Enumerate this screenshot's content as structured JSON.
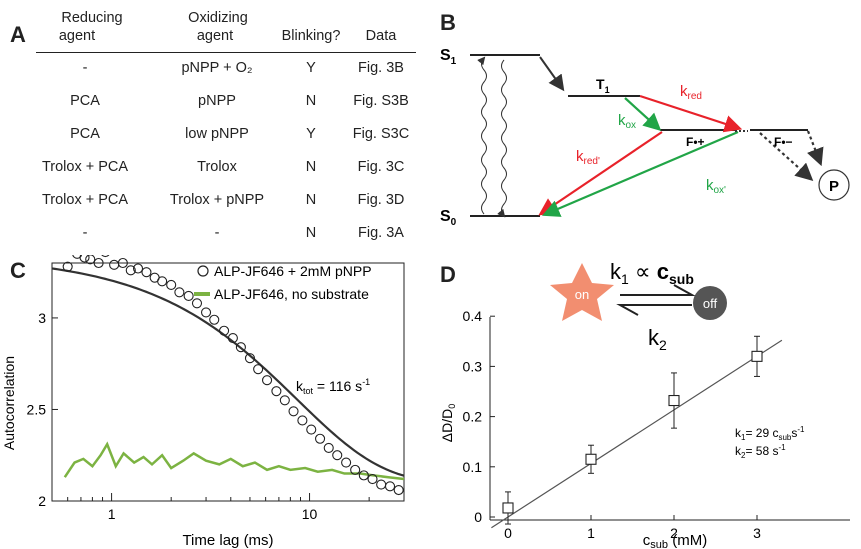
{
  "panel_labels": {
    "a": "A",
    "b": "B",
    "c": "C",
    "d": "D"
  },
  "table": {
    "headers": [
      [
        "Reducing",
        "agent"
      ],
      [
        "Oxidizing",
        "agent"
      ],
      [
        "Blinking?"
      ],
      [
        "Data"
      ]
    ],
    "rows": [
      [
        "-",
        "pNPP + O₂",
        "Y",
        "Fig. 3B"
      ],
      [
        "PCA",
        "pNPP",
        "N",
        "Fig. S3B"
      ],
      [
        "PCA",
        "low pNPP",
        "Y",
        "Fig. S3C"
      ],
      [
        "Trolox + PCA",
        "Trolox",
        "N",
        "Fig. 3C"
      ],
      [
        "Trolox + PCA",
        "Trolox + pNPP",
        "N",
        "Fig. 3D"
      ],
      [
        "-",
        "-",
        "N",
        "Fig. 3A"
      ]
    ]
  },
  "diagram": {
    "s1": "S",
    "s1_sub": "1",
    "s0": "S",
    "s0_sub": "0",
    "t1": "T",
    "t1_sub": "1",
    "radical_cation": "F•+",
    "radical_anion": "F•−",
    "product": "P",
    "k_red": "k",
    "k_red_sub": "red",
    "k_ox": "k",
    "k_ox_sub": "ox",
    "k_red2": "k",
    "k_red2_sub": "red'",
    "k_ox2": "k",
    "k_ox2_sub": "ox'",
    "red_color": "#e8222a",
    "green_color": "#21a547"
  },
  "chart_c": {
    "legend": [
      "ALP-JF646 + 2mM pNPP",
      "ALP-JF646, no substrate"
    ],
    "xlabel": "Time lag (ms)",
    "ylabel": "Autocorrelation",
    "annotation": "k",
    "annotation_sub": "tot",
    "annotation_value": " = 116 s",
    "annotation_exp": "-1",
    "xticks": [
      "1",
      "10"
    ],
    "yticks": [
      "2",
      "2.5",
      "3"
    ],
    "line_color": "#7cb342"
  },
  "chart_d": {
    "xlabel": "c",
    "xlabel_sub": "sub",
    "xlabel_unit": " (mM)",
    "ylabel": "ΔD/D",
    "ylabel_sub": "0",
    "xticks": [
      "0",
      "1",
      "2",
      "3"
    ],
    "yticks": [
      "0",
      "0.1",
      "0.2",
      "0.3",
      "0.4"
    ],
    "scheme_on": "on",
    "scheme_off": "off",
    "scheme_k1": "k",
    "scheme_k1_sub": "1",
    "scheme_prop": " ∝ ",
    "scheme_c": "c",
    "scheme_c_sub": "sub",
    "scheme_k2": "k",
    "scheme_k2_sub": "2",
    "ann1": "k",
    "ann1_sub": "1",
    "ann1_value": "= 29 c",
    "ann1_sub2": "sub",
    "ann1_unit": "s",
    "ann1_exp": "-1",
    "ann2": "k",
    "ann2_sub": "2",
    "ann2_value": "= 58 s",
    "ann2_exp": "-1",
    "star_color": "#f28e70",
    "off_color": "#555555"
  },
  "chart_data": [
    {
      "type": "scatter",
      "panel": "C",
      "xlabel": "Time lag (ms)",
      "ylabel": "Autocorrelation",
      "xscale": "log",
      "xlim": [
        0.5,
        30
      ],
      "ylim": [
        2,
        3.3
      ],
      "series": [
        {
          "name": "ALP-JF646 + 2mM pNPP",
          "x": [
            0.6,
            0.67,
            0.73,
            0.78,
            0.86,
            0.93,
            1.03,
            1.14,
            1.25,
            1.36,
            1.5,
            1.65,
            1.8,
            2.0,
            2.2,
            2.45,
            2.7,
            3.0,
            3.3,
            3.7,
            4.1,
            4.5,
            5.0,
            5.5,
            6.1,
            6.8,
            7.5,
            8.3,
            9.2,
            10.2,
            11.3,
            12.5,
            13.8,
            15.3,
            17.0,
            18.8,
            20.8,
            23.0,
            25.5,
            28.2
          ],
          "y": [
            3.28,
            3.35,
            3.33,
            3.32,
            3.3,
            3.36,
            3.29,
            3.3,
            3.26,
            3.27,
            3.25,
            3.22,
            3.2,
            3.18,
            3.14,
            3.12,
            3.08,
            3.03,
            2.99,
            2.93,
            2.89,
            2.84,
            2.78,
            2.72,
            2.66,
            2.6,
            2.55,
            2.49,
            2.44,
            2.39,
            2.34,
            2.29,
            2.25,
            2.21,
            2.17,
            2.14,
            2.12,
            2.09,
            2.08,
            2.06
          ]
        },
        {
          "name": "ALP-JF646, no substrate",
          "x": [
            0.58,
            0.65,
            0.72,
            0.8,
            0.88,
            0.95,
            1.05,
            1.15,
            1.3,
            1.45,
            1.6,
            1.8,
            2.0,
            2.3,
            2.6,
            3.0,
            3.5,
            4.0,
            4.6,
            5.3,
            6.1,
            7.0,
            8.0,
            9.5,
            11,
            13,
            15,
            18,
            21,
            25,
            30
          ],
          "y": [
            2.13,
            2.21,
            2.23,
            2.19,
            2.25,
            2.31,
            2.19,
            2.26,
            2.21,
            2.24,
            2.2,
            2.25,
            2.18,
            2.22,
            2.26,
            2.22,
            2.2,
            2.23,
            2.19,
            2.21,
            2.17,
            2.19,
            2.17,
            2.18,
            2.16,
            2.17,
            2.15,
            2.15,
            2.14,
            2.13,
            2.12
          ]
        }
      ],
      "fit": {
        "amplitude": 1.24,
        "offset": 2.1,
        "k_tot": 116
      }
    },
    {
      "type": "scatter",
      "panel": "D",
      "xlabel": "c sub (mM)",
      "ylabel": "ΔD/D0",
      "xlim": [
        -0.2,
        3.3
      ],
      "ylim": [
        -0.02,
        0.4
      ],
      "x": [
        0,
        1,
        2,
        3
      ],
      "y": [
        0.018,
        0.115,
        0.232,
        0.32
      ],
      "yerr": [
        0.032,
        0.028,
        0.055,
        0.04
      ],
      "fit": {
        "slope": 0.1067,
        "intercept": 0.0
      }
    }
  ]
}
